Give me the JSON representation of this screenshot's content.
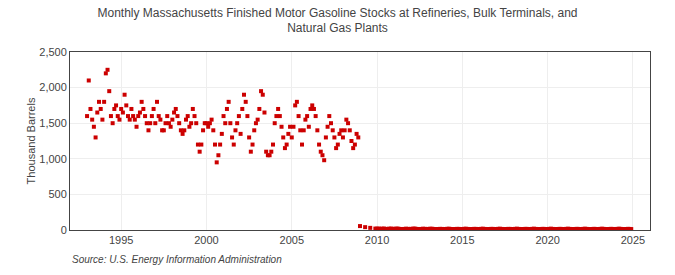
{
  "chart_data": {
    "type": "scatter",
    "title": "Monthly Massachusetts Finished Motor Gasoline Stocks at Refineries, Bulk Terminals, and\nNatural Gas Plants",
    "ylabel": "Thousand Barrels",
    "annotations": [
      "Source: U.S. Energy Information Administration"
    ],
    "xlim": [
      1992.0,
      2026.0
    ],
    "xticks": [
      1995,
      2000,
      2005,
      2010,
      2015,
      2020,
      2025
    ],
    "ylim": [
      0,
      2500
    ],
    "yticks": [
      0,
      500,
      {
        "value": 1000,
        "label": "1,000"
      },
      {
        "value": 1500,
        "label": "1,500"
      },
      {
        "value": 2000,
        "label": "2,000"
      },
      {
        "value": 2500,
        "label": "2,500"
      }
    ],
    "grid": true,
    "series": [
      {
        "color": "#cc0000",
        "marker": "square",
        "x": [
          1993.0,
          1993.1,
          1993.2,
          1993.3,
          1993.4,
          1993.5,
          1993.6,
          1993.7,
          1993.8,
          1993.9,
          1994.0,
          1994.1,
          1994.2,
          1994.3,
          1994.4,
          1994.5,
          1994.6,
          1994.7,
          1994.8,
          1994.9,
          1995.0,
          1995.1,
          1995.2,
          1995.3,
          1995.4,
          1995.5,
          1995.6,
          1995.7,
          1995.8,
          1995.9,
          1996.0,
          1996.1,
          1996.2,
          1996.3,
          1996.4,
          1996.5,
          1996.6,
          1996.7,
          1996.8,
          1996.9,
          1997.0,
          1997.1,
          1997.2,
          1997.3,
          1997.4,
          1997.5,
          1997.6,
          1997.7,
          1997.8,
          1997.9,
          1998.0,
          1998.1,
          1998.2,
          1998.3,
          1998.4,
          1998.5,
          1998.6,
          1998.7,
          1998.8,
          1998.9,
          1999.0,
          1999.1,
          1999.2,
          1999.3,
          1999.4,
          1999.5,
          1999.6,
          1999.7,
          1999.8,
          1999.9,
          2000.0,
          2000.1,
          2000.2,
          2000.3,
          2000.4,
          2000.5,
          2000.6,
          2000.7,
          2000.8,
          2000.9,
          2001.0,
          2001.1,
          2001.2,
          2001.3,
          2001.4,
          2001.5,
          2001.6,
          2001.7,
          2001.8,
          2001.9,
          2002.0,
          2002.1,
          2002.2,
          2002.3,
          2002.4,
          2002.5,
          2002.6,
          2002.7,
          2002.8,
          2002.9,
          2003.0,
          2003.1,
          2003.2,
          2003.3,
          2003.4,
          2003.5,
          2003.6,
          2003.7,
          2003.8,
          2003.9,
          2004.0,
          2004.1,
          2004.2,
          2004.3,
          2004.4,
          2004.5,
          2004.6,
          2004.7,
          2004.8,
          2004.9,
          2005.0,
          2005.1,
          2005.2,
          2005.3,
          2005.4,
          2005.5,
          2005.6,
          2005.7,
          2005.8,
          2005.9,
          2006.0,
          2006.1,
          2006.2,
          2006.3,
          2006.4,
          2006.5,
          2006.6,
          2006.7,
          2006.8,
          2006.9,
          2007.0,
          2007.1,
          2007.2,
          2007.3,
          2007.4,
          2007.5,
          2007.6,
          2007.7,
          2007.8,
          2007.9,
          2008.0,
          2008.1,
          2008.2,
          2008.3,
          2008.4,
          2008.5,
          2008.6,
          2008.7,
          2008.8,
          2008.9
        ],
        "values": [
          1600,
          2100,
          1700,
          1550,
          1450,
          1300,
          1650,
          1800,
          1700,
          1550,
          1800,
          2200,
          2250,
          1950,
          1600,
          1500,
          1700,
          1750,
          1600,
          1550,
          1700,
          1650,
          1900,
          1750,
          1600,
          1550,
          1700,
          1600,
          1550,
          1450,
          1600,
          1650,
          1800,
          1700,
          1600,
          1500,
          1400,
          1500,
          1600,
          1700,
          1500,
          1800,
          1600,
          1550,
          1400,
          1400,
          1500,
          1600,
          1500,
          1450,
          1550,
          1650,
          1700,
          1600,
          1500,
          1400,
          1350,
          1400,
          1550,
          1600,
          1450,
          1500,
          1700,
          1600,
          1500,
          1200,
          1100,
          1200,
          1400,
          1500,
          1500,
          1450,
          1500,
          1550,
          1400,
          1200,
          950,
          1050,
          1200,
          1350,
          1600,
          1500,
          1700,
          1800,
          1500,
          1300,
          1200,
          1400,
          1500,
          1600,
          1350,
          1700,
          1900,
          1800,
          1600,
          1300,
          1100,
          1200,
          1400,
          1500,
          1550,
          1700,
          1950,
          1900,
          1650,
          1100,
          1050,
          1050,
          1100,
          1200,
          1500,
          1600,
          1700,
          1600,
          1450,
          1300,
          1150,
          1200,
          1350,
          1450,
          1300,
          1450,
          1750,
          1800,
          1600,
          1400,
          1200,
          1400,
          1550,
          1600,
          1450,
          1700,
          1750,
          1700,
          1600,
          1400,
          1200,
          1100,
          1050,
          980,
          1300,
          1450,
          1600,
          1500,
          1400,
          1300,
          1150,
          1200,
          1350,
          1400,
          1300,
          1400,
          1550,
          1500,
          1400,
          1250,
          1150,
          1200,
          1350,
          1300
        ]
      },
      {
        "color": "#cc0000",
        "marker": "square",
        "x": [
          2009.0,
          2009.3,
          2009.6,
          2009.9,
          2010.0,
          2010.1,
          2010.2,
          2010.3,
          2010.4,
          2010.5,
          2010.6,
          2010.7,
          2010.8,
          2010.9,
          2011.0,
          2011.1,
          2011.2,
          2011.3,
          2011.4,
          2011.5,
          2011.6,
          2011.7,
          2011.8,
          2011.9,
          2012.0,
          2012.1,
          2012.2,
          2012.3,
          2012.4,
          2012.5,
          2012.6,
          2012.7,
          2012.8,
          2012.9,
          2013.0,
          2013.1,
          2013.2,
          2013.3,
          2013.4,
          2013.5,
          2013.6,
          2013.7,
          2013.8,
          2013.9,
          2014.0,
          2014.1,
          2014.2,
          2014.3,
          2014.4,
          2014.5,
          2014.6,
          2014.7,
          2014.8,
          2014.9,
          2015.0,
          2015.1,
          2015.2,
          2015.3,
          2015.4,
          2015.5,
          2015.6,
          2015.7,
          2015.8,
          2015.9,
          2016.0,
          2016.1,
          2016.2,
          2016.3,
          2016.4,
          2016.5,
          2016.6,
          2016.7,
          2016.8,
          2016.9,
          2017.0,
          2017.1,
          2017.2,
          2017.3,
          2017.4,
          2017.5,
          2017.6,
          2017.7,
          2017.8,
          2017.9,
          2018.0,
          2018.1,
          2018.2,
          2018.3,
          2018.4,
          2018.5,
          2018.6,
          2018.7,
          2018.8,
          2018.9,
          2019.0,
          2019.1,
          2019.2,
          2019.3,
          2019.4,
          2019.5,
          2019.6,
          2019.7,
          2019.8,
          2019.9,
          2020.0,
          2020.1,
          2020.2,
          2020.3,
          2020.4,
          2020.5,
          2020.6,
          2020.7,
          2020.8,
          2020.9,
          2021.0,
          2021.1,
          2021.2,
          2021.3,
          2021.4,
          2021.5,
          2021.6,
          2021.7,
          2021.8,
          2021.9,
          2022.0,
          2022.1,
          2022.2,
          2022.3,
          2022.4,
          2022.5,
          2022.6,
          2022.7,
          2022.8,
          2022.9,
          2023.0,
          2023.1,
          2023.2,
          2023.3,
          2023.4,
          2023.5,
          2023.6,
          2023.7,
          2023.8,
          2023.9,
          2024.0,
          2024.1,
          2024.2,
          2024.3,
          2024.4,
          2024.5,
          2024.6,
          2024.7,
          2024.8,
          2024.9
        ],
        "values": [
          55,
          40,
          30,
          20,
          18,
          20,
          16,
          18,
          20,
          16,
          14,
          18,
          20,
          16,
          16,
          18,
          20,
          16,
          14,
          13,
          15,
          18,
          16,
          14,
          16,
          18,
          20,
          16,
          14,
          13,
          15,
          18,
          16,
          14,
          15,
          17,
          18,
          15,
          13,
          12,
          14,
          16,
          15,
          13,
          14,
          16,
          18,
          15,
          13,
          12,
          14,
          16,
          15,
          13,
          14,
          16,
          18,
          15,
          13,
          12,
          14,
          16,
          15,
          13,
          14,
          16,
          18,
          15,
          13,
          12,
          14,
          16,
          15,
          13,
          14,
          16,
          18,
          15,
          13,
          12,
          14,
          16,
          15,
          13,
          14,
          16,
          18,
          15,
          13,
          12,
          14,
          16,
          15,
          13,
          14,
          16,
          18,
          15,
          13,
          12,
          14,
          16,
          15,
          13,
          14,
          16,
          18,
          15,
          13,
          12,
          14,
          16,
          15,
          13,
          14,
          16,
          18,
          15,
          13,
          12,
          14,
          16,
          15,
          13,
          14,
          16,
          18,
          15,
          13,
          12,
          14,
          16,
          15,
          13,
          14,
          16,
          18,
          15,
          13,
          12,
          14,
          16,
          15,
          13,
          14,
          16,
          18,
          15,
          13,
          12,
          14,
          16,
          15,
          13
        ]
      }
    ]
  }
}
